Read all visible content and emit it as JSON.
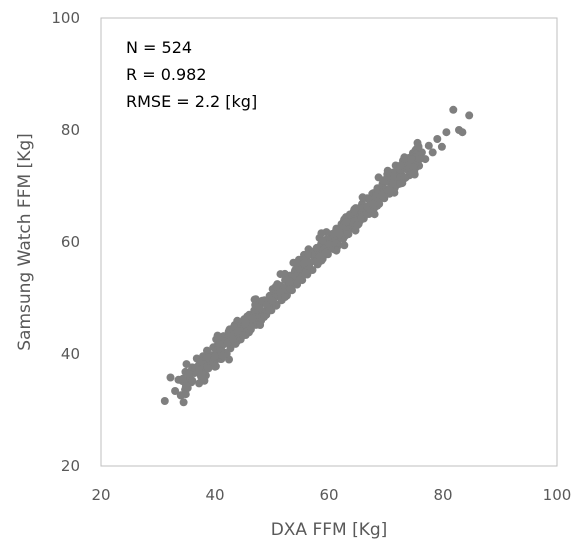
{
  "colors": {
    "points": "#7f7f7f",
    "frame": "#bfbfbf",
    "text": "#595959"
  },
  "chart_data": {
    "type": "scatter",
    "xlabel": "DXA FFM [Kg]",
    "ylabel": "Samsung Watch FFM [Kg]",
    "xlim": [
      20,
      100
    ],
    "ylim": [
      20,
      100
    ],
    "xticks": [
      "20",
      "40",
      "60",
      "80",
      "100"
    ],
    "yticks": [
      "20",
      "40",
      "60",
      "80",
      "100"
    ],
    "grid": false,
    "annotations": [
      "N = 524",
      "R = 0.982",
      "RMSE = 2.2 [kg]"
    ],
    "n_points": 524,
    "r": 0.982,
    "rmse": 2.2,
    "x_range_points": [
      31,
      85
    ],
    "y_range_points": [
      31.5,
      84
    ],
    "series": [
      {
        "points": [
          [
            31.2,
            31.6
          ],
          [
            32.2,
            35.8
          ],
          [
            33.0,
            33.4
          ],
          [
            33.6,
            35.4
          ],
          [
            34.0,
            32.6
          ],
          [
            34.8,
            36.8
          ],
          [
            35.0,
            38.2
          ],
          [
            35.5,
            35.2
          ],
          [
            36.0,
            37.6
          ],
          [
            36.4,
            36.6
          ],
          [
            36.8,
            39.2
          ],
          [
            37.2,
            38.0
          ],
          [
            37.6,
            37.0
          ],
          [
            37.9,
            39.6
          ],
          [
            38.3,
            38.4
          ],
          [
            38.6,
            40.6
          ],
          [
            39.0,
            37.8
          ],
          [
            39.3,
            39.8
          ],
          [
            39.7,
            41.2
          ],
          [
            40.0,
            38.8
          ],
          [
            40.3,
            40.6
          ],
          [
            40.6,
            42.4
          ],
          [
            40.9,
            39.4
          ],
          [
            41.2,
            41.4
          ],
          [
            41.5,
            43.2
          ],
          [
            41.8,
            40.2
          ],
          [
            42.1,
            42.0
          ],
          [
            42.4,
            44.0
          ],
          [
            42.7,
            41.0
          ],
          [
            43.0,
            42.8
          ],
          [
            43.3,
            44.6
          ],
          [
            43.6,
            41.8
          ],
          [
            43.9,
            43.6
          ],
          [
            44.2,
            45.4
          ],
          [
            44.5,
            42.6
          ],
          [
            44.8,
            44.4
          ],
          [
            45.1,
            46.2
          ],
          [
            45.4,
            43.4
          ],
          [
            45.7,
            45.2
          ],
          [
            46.0,
            47.0
          ],
          [
            46.3,
            44.4
          ],
          [
            46.6,
            46.0
          ],
          [
            46.9,
            47.8
          ],
          [
            47.2,
            45.2
          ],
          [
            47.5,
            46.8
          ],
          [
            47.8,
            48.8
          ],
          [
            48.1,
            46.0
          ],
          [
            48.4,
            47.6
          ],
          [
            48.7,
            49.6
          ],
          [
            49.0,
            47.0
          ],
          [
            49.3,
            48.6
          ],
          [
            49.6,
            50.4
          ],
          [
            49.9,
            47.8
          ],
          [
            50.2,
            49.4
          ],
          [
            50.5,
            51.4
          ],
          [
            50.8,
            48.8
          ],
          [
            51.1,
            50.4
          ],
          [
            51.4,
            52.2
          ],
          [
            51.7,
            49.6
          ],
          [
            52.0,
            51.2
          ],
          [
            52.3,
            53.2
          ],
          [
            52.6,
            50.6
          ],
          [
            52.9,
            52.2
          ],
          [
            53.2,
            54.0
          ],
          [
            53.5,
            51.4
          ],
          [
            53.8,
            53.0
          ],
          [
            54.1,
            55.0
          ],
          [
            54.4,
            52.4
          ],
          [
            54.7,
            54.0
          ],
          [
            55.0,
            55.8
          ],
          [
            55.3,
            53.2
          ],
          [
            55.6,
            55.0
          ],
          [
            55.9,
            56.8
          ],
          [
            56.2,
            54.2
          ],
          [
            56.5,
            55.8
          ],
          [
            56.8,
            57.8
          ],
          [
            57.1,
            55.0
          ],
          [
            57.4,
            56.8
          ],
          [
            57.7,
            58.6
          ],
          [
            58.0,
            56.0
          ],
          [
            58.3,
            57.6
          ],
          [
            58.6,
            59.6
          ],
          [
            58.9,
            57.0
          ],
          [
            59.2,
            58.6
          ],
          [
            59.5,
            60.4
          ],
          [
            59.8,
            57.8
          ],
          [
            60.1,
            59.4
          ],
          [
            60.4,
            61.4
          ],
          [
            60.7,
            58.8
          ],
          [
            61.0,
            60.4
          ],
          [
            61.3,
            62.4
          ],
          [
            61.6,
            59.6
          ],
          [
            61.9,
            61.2
          ],
          [
            62.2,
            63.2
          ],
          [
            62.5,
            60.6
          ],
          [
            62.8,
            62.2
          ],
          [
            63.1,
            64.2
          ],
          [
            63.4,
            61.4
          ],
          [
            63.7,
            63.0
          ],
          [
            64.0,
            65.0
          ],
          [
            64.3,
            62.4
          ],
          [
            64.6,
            64.0
          ],
          [
            64.9,
            66.0
          ],
          [
            65.2,
            63.2
          ],
          [
            65.5,
            64.8
          ],
          [
            65.8,
            66.8
          ],
          [
            66.1,
            64.2
          ],
          [
            66.4,
            65.8
          ],
          [
            66.7,
            67.8
          ],
          [
            67.0,
            65.0
          ],
          [
            67.3,
            66.6
          ],
          [
            67.6,
            68.6
          ],
          [
            67.9,
            66.0
          ],
          [
            68.2,
            67.6
          ],
          [
            68.5,
            69.6
          ],
          [
            68.8,
            66.8
          ],
          [
            69.1,
            68.4
          ],
          [
            69.4,
            70.4
          ],
          [
            69.7,
            67.8
          ],
          [
            70.0,
            69.4
          ],
          [
            70.3,
            71.4
          ],
          [
            70.6,
            68.6
          ],
          [
            70.9,
            70.2
          ],
          [
            71.2,
            72.2
          ],
          [
            71.5,
            69.6
          ],
          [
            71.8,
            71.2
          ],
          [
            72.1,
            73.2
          ],
          [
            72.4,
            70.4
          ],
          [
            72.7,
            72.0
          ],
          [
            73.0,
            74.0
          ],
          [
            73.3,
            71.4
          ],
          [
            73.6,
            73.0
          ],
          [
            74.0,
            75.0
          ],
          [
            74.4,
            72.2
          ],
          [
            74.8,
            74.0
          ],
          [
            75.3,
            75.8
          ],
          [
            75.8,
            73.6
          ],
          [
            76.3,
            76.0
          ],
          [
            76.9,
            74.8
          ],
          [
            77.5,
            77.2
          ],
          [
            78.2,
            76.0
          ],
          [
            79.0,
            78.4
          ],
          [
            79.8,
            77.0
          ],
          [
            80.6,
            79.6
          ],
          [
            81.8,
            83.6
          ],
          [
            82.8,
            80.0
          ],
          [
            84.6,
            82.6
          ],
          [
            83.4,
            79.6
          ]
        ]
      }
    ]
  }
}
